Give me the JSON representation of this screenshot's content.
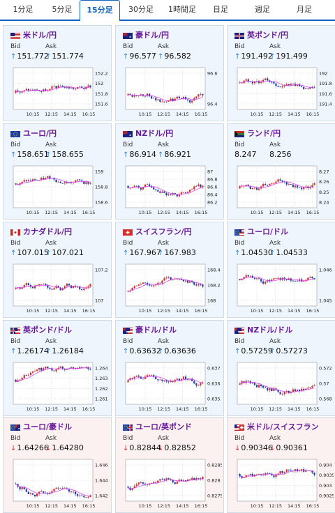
{
  "tabs": [
    {
      "label": "1分足"
    },
    {
      "label": "5分足"
    },
    {
      "label": "15分足",
      "active": true
    },
    {
      "label": "30分足"
    },
    {
      "label": "1時間足"
    },
    {
      "label": "日足"
    },
    {
      "label": "週足"
    },
    {
      "label": "月足"
    }
  ],
  "colors": {
    "accent": "#1565c0",
    "title": "#6a1b9a",
    "up_candle": "#d32f2f",
    "down_candle": "#1e3fb0",
    "ma_line": "#d946ef",
    "up_arrow": "#1e7ad6",
    "down_arrow": "#d32f2f"
  },
  "labels": {
    "bid": "Bid",
    "ask": "Ask"
  },
  "panels": [
    {
      "title": "米ドル/円",
      "flag": "US",
      "trend": "up",
      "bid": "151.772",
      "ask": "151.774",
      "chart_data": {
        "type": "candlestick",
        "x_ticks": [
          "10:15",
          "12:15",
          "14:15",
          "16:15"
        ],
        "y_ticks": [
          "152.2",
          "152",
          "151.8",
          "151.6"
        ]
      }
    },
    {
      "title": "豪ドル/円",
      "flag": "AU",
      "trend": "up",
      "bid": "96.577",
      "ask": "96.582",
      "chart_data": {
        "type": "candlestick",
        "x_ticks": [
          "10:15",
          "12:15",
          "14:15",
          "16:15"
        ],
        "y_ticks": [
          "96.6",
          "96.4"
        ]
      }
    },
    {
      "title": "英ポンド/円",
      "flag": "GB",
      "trend": "up",
      "bid": "191.492",
      "ask": "191.499",
      "chart_data": {
        "type": "candlestick",
        "x_ticks": [
          "10:15",
          "12:15",
          "14:15",
          "16:15"
        ],
        "y_ticks": [
          "192",
          "191.8",
          "191.6",
          "191.4"
        ]
      }
    },
    {
      "title": "ユーロ/円",
      "flag": "EU",
      "trend": "up",
      "bid": "158.651",
      "ask": "158.655",
      "chart_data": {
        "type": "candlestick",
        "x_ticks": [
          "10:15",
          "12:15",
          "14:15",
          "16:15"
        ],
        "y_ticks": [
          "159",
          "158.8",
          "158.6"
        ]
      }
    },
    {
      "title": "NZドル/円",
      "flag": "NZ",
      "trend": "up",
      "bid": "86.914",
      "ask": "86.921",
      "chart_data": {
        "type": "candlestick",
        "x_ticks": [
          "10:15",
          "12:15",
          "14:15",
          "16:15"
        ],
        "y_ticks": [
          "87",
          "86.8",
          "86.6",
          "86.4",
          "86.2"
        ]
      }
    },
    {
      "title": "ランド/円",
      "flag": "ZA",
      "trend": "none",
      "bid": "8.247",
      "ask": "8.256",
      "chart_data": {
        "type": "candlestick",
        "x_ticks": [
          "10:15",
          "12:15",
          "14:15",
          "16:15"
        ],
        "y_ticks": [
          "8.27",
          "8.26",
          "8.25",
          "8.24"
        ]
      }
    },
    {
      "title": "カナダドル/円",
      "flag": "CA",
      "trend": "up",
      "bid": "107.015",
      "ask": "107.021",
      "chart_data": {
        "type": "candlestick",
        "x_ticks": [
          "10:15",
          "12:15",
          "14:15",
          "16:15"
        ],
        "y_ticks": [
          "107.2",
          "107"
        ]
      }
    },
    {
      "title": "スイスフラン/円",
      "flag": "CH",
      "trend": "up",
      "bid": "167.967",
      "ask": "167.983",
      "chart_data": {
        "type": "candlestick",
        "x_ticks": [
          "10:15",
          "12:15",
          "14:15",
          "16:15"
        ],
        "y_ticks": [
          "168.4",
          "168.2",
          "168"
        ]
      }
    },
    {
      "title": "ユーロ/ドル",
      "flag": "EU-US",
      "trend": "up",
      "bid": "1.04530",
      "ask": "1.04533",
      "chart_data": {
        "type": "candlestick",
        "x_ticks": [
          "10:15",
          "12:15",
          "14:15",
          "16:15"
        ],
        "y_ticks": [
          "1.046",
          "1.045"
        ]
      }
    },
    {
      "title": "英ポンド/ドル",
      "flag": "GB-US",
      "trend": "up",
      "bid": "1.26174",
      "ask": "1.26184",
      "chart_data": {
        "type": "candlestick",
        "x_ticks": [
          "10:15",
          "12:15",
          "14:15",
          "16:15"
        ],
        "y_ticks": [
          "1.264",
          "1.263",
          "1.262",
          "1.261"
        ]
      }
    },
    {
      "title": "豪ドル/ドル",
      "flag": "AU-US",
      "trend": "up",
      "bid": "0.63632",
      "ask": "0.63636",
      "chart_data": {
        "type": "candlestick",
        "x_ticks": [
          "10:15",
          "12:15",
          "14:15",
          "16:15"
        ],
        "y_ticks": [
          "0.637",
          "0.636",
          "0.635"
        ]
      }
    },
    {
      "title": "NZドル/ドル",
      "flag": "NZ-US",
      "trend": "up",
      "bid": "0.57259",
      "ask": "0.57273",
      "chart_data": {
        "type": "candlestick",
        "x_ticks": [
          "10:15",
          "12:15",
          "14:15",
          "16:15"
        ],
        "y_ticks": [
          "0.572",
          "0.57",
          "0.568"
        ]
      }
    },
    {
      "title": "ユーロ/豪ドル",
      "flag": "EU-AU",
      "trend": "down",
      "bid": "1.64266",
      "ask": "1.64280",
      "chart_data": {
        "type": "candlestick",
        "x_ticks": [
          "10:15",
          "12:15",
          "14:15",
          "16:15"
        ],
        "y_ticks": [
          "1.646",
          "1.644",
          "1.642"
        ]
      }
    },
    {
      "title": "ユーロ/英ポンド",
      "flag": "EU-GB",
      "trend": "down",
      "bid": "0.82844",
      "ask": "0.82852",
      "chart_data": {
        "type": "candlestick",
        "x_ticks": [
          "10:15",
          "12:15",
          "14:15",
          "16:15"
        ],
        "y_ticks": [
          "0.8285",
          "0.828",
          "0.8275"
        ]
      }
    },
    {
      "title": "米ドル/スイスフラン",
      "flag": "US-CH",
      "trend": "down",
      "bid": "0.90346",
      "ask": "0.90361",
      "chart_data": {
        "type": "candlestick",
        "x_ticks": [
          "10:15",
          "12:15",
          "14:15",
          "16:15"
        ],
        "y_ticks": [
          "0.904",
          "0.9035",
          "0.903",
          "0.9025"
        ]
      }
    }
  ]
}
